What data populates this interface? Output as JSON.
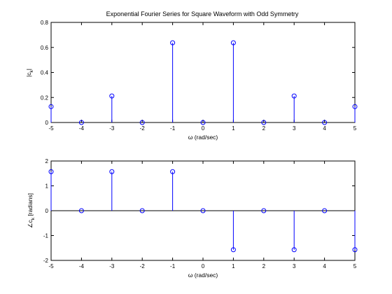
{
  "colors": {
    "stem": "#0000ff",
    "axis": "#000000",
    "background": "#ffffff"
  },
  "chart_data": [
    {
      "type": "stem",
      "title": "Exponential Fourier Series for Square Waveform with Odd Symmetry",
      "xlabel": "ω (rad/sec)",
      "ylabel_main": "|c",
      "ylabel_sub": "k",
      "ylabel_end": "|",
      "xlim": [
        -5,
        5
      ],
      "ylim": [
        0,
        0.8
      ],
      "xticks": [
        -5,
        -4,
        -3,
        -2,
        -1,
        0,
        1,
        2,
        3,
        4,
        5
      ],
      "yticks": [
        0,
        0.2,
        0.4,
        0.6,
        0.8
      ],
      "xtick_labels": [
        "-5",
        "-4",
        "-3",
        "-2",
        "-1",
        "0",
        "1",
        "2",
        "3",
        "4",
        "5"
      ],
      "ytick_labels": [
        "0",
        "0.2",
        "0.4",
        "0.6",
        "0.8"
      ],
      "x": [
        -5,
        -4,
        -3,
        -2,
        -1,
        0,
        1,
        2,
        3,
        4,
        5
      ],
      "y": [
        0.127,
        0,
        0.212,
        0,
        0.637,
        0,
        0.637,
        0,
        0.212,
        0,
        0.127
      ]
    },
    {
      "type": "stem",
      "title": "",
      "xlabel": "ω (rad/sec)",
      "ylabel_main": "∠c",
      "ylabel_sub": "k",
      "ylabel_end": " [radians]",
      "xlim": [
        -5,
        5
      ],
      "ylim": [
        -2,
        2
      ],
      "xticks": [
        -5,
        -4,
        -3,
        -2,
        -1,
        0,
        1,
        2,
        3,
        4,
        5
      ],
      "yticks": [
        -2,
        -1,
        0,
        1,
        2
      ],
      "xtick_labels": [
        "-5",
        "-4",
        "-3",
        "-2",
        "-1",
        "0",
        "1",
        "2",
        "3",
        "4",
        "5"
      ],
      "ytick_labels": [
        "-2",
        "-1",
        "0",
        "1",
        "2"
      ],
      "x": [
        -5,
        -4,
        -3,
        -2,
        -1,
        0,
        1,
        2,
        3,
        4,
        5
      ],
      "y": [
        1.5708,
        0,
        1.5708,
        0,
        1.5708,
        0,
        -1.5708,
        0,
        -1.5708,
        0,
        -1.5708
      ]
    }
  ]
}
